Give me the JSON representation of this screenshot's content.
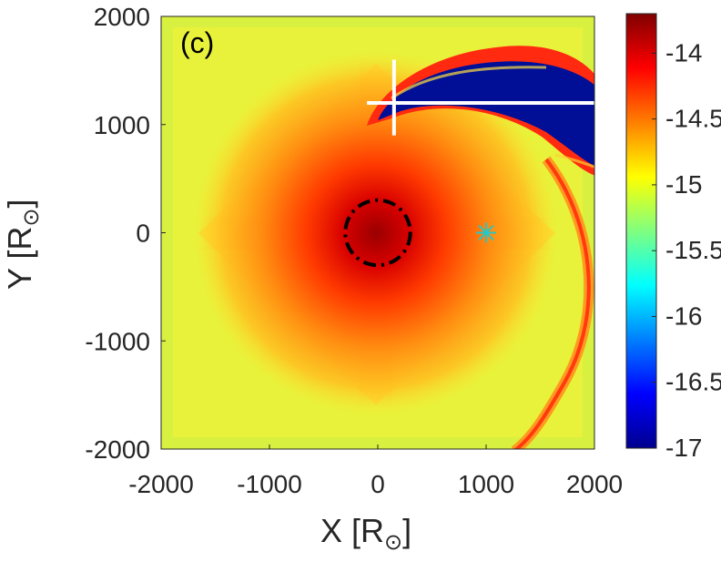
{
  "chart_data": {
    "type": "heatmap",
    "panel_label": "(c)",
    "xlabel": "X [R",
    "ylabel": "Y [R",
    "unit_subscript": "⊙",
    "xlim": [
      -2000,
      2000
    ],
    "ylim": [
      -2000,
      2000
    ],
    "xticks": [
      -2000,
      -1000,
      0,
      1000,
      2000
    ],
    "yticks": [
      -2000,
      -1000,
      0,
      1000,
      2000
    ],
    "colorbar": {
      "colormap": "jet",
      "range": [
        -17,
        -13.7
      ],
      "ticks": [
        -14,
        -14.5,
        -15,
        -15.5,
        -16,
        -16.5,
        -17
      ]
    },
    "field": {
      "background_value": -15.0,
      "peak_value": -13.8,
      "central_cross_value": -14.8,
      "spiral_band_value": -17.0
    },
    "annotations": {
      "dashed_circle": {
        "center": [
          0,
          0
        ],
        "radius": 300
      },
      "star_marker": {
        "x": 1000,
        "y": 0,
        "color": "#25c8c8"
      },
      "crosshair": {
        "vertical_x": 150,
        "vertical_y": [
          900,
          1600
        ],
        "horizontal_y": 1200,
        "horizontal_x": [
          -100,
          2000
        ],
        "color": "#ffffff"
      }
    }
  }
}
